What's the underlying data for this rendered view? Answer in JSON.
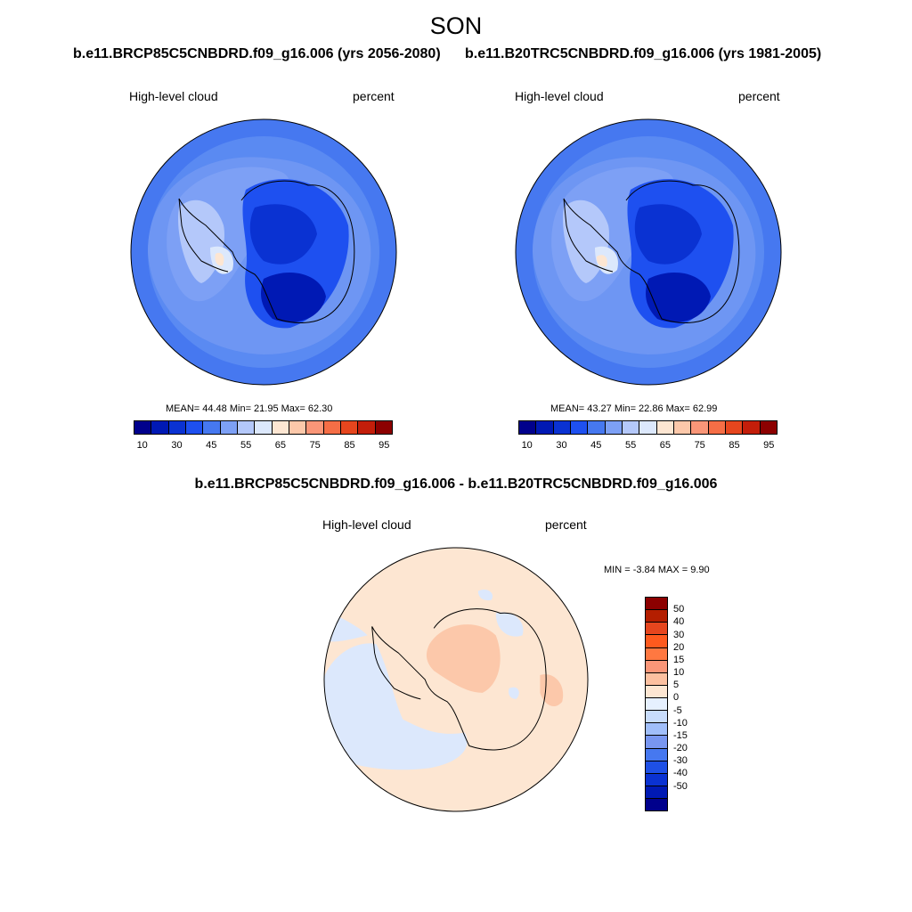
{
  "figure": {
    "title": "SON",
    "case_a": "b.e11.BRCP85C5CNBDRD.f09_g16.006 (yrs 2056-2080)",
    "case_b": "b.e11.B20TRC5CNBDRD.f09_g16.006 (yrs 1981-2005)",
    "diff_title": "b.e11.BRCP85C5CNBDRD.f09_g16.006 - b.e11.B20TRC5CNBDRD.f09_g16.006"
  },
  "panels": [
    {
      "variable": "High-level cloud",
      "units": "percent",
      "stats": "MEAN=  44.48  Min=  21.95  Max=  62.30"
    },
    {
      "variable": "High-level cloud",
      "units": "percent",
      "stats": "MEAN=  43.27  Min=  22.86  Max=  62.99"
    }
  ],
  "diff_panel": {
    "variable": "High-level cloud",
    "units": "percent",
    "stats": "MIN =  -3.84 MAX =   9.90"
  },
  "colorbar_main": {
    "colors": [
      "#00008c",
      "#0019b4",
      "#0a32d2",
      "#1e50f0",
      "#4678f0",
      "#7da0f5",
      "#b4c8fa",
      "#dce8fc",
      "#fde6d2",
      "#fcc8aa",
      "#fa9678",
      "#f56e46",
      "#e6461e",
      "#c31e0a",
      "#8c0000"
    ],
    "tick_labels": [
      "10",
      "30",
      "45",
      "55",
      "65",
      "75",
      "85",
      "95"
    ]
  },
  "colorbar_diff": {
    "colors": [
      "#8c0000",
      "#b41e00",
      "#e6461e",
      "#ff5a1e",
      "#ff7841",
      "#fa9678",
      "#fcc0a0",
      "#fde6d2",
      "#e6f0ff",
      "#c8dcfc",
      "#a0befa",
      "#7896f0",
      "#4678f0",
      "#1e50e6",
      "#0a32d2",
      "#0019b4",
      "#00008c"
    ],
    "tick_labels": [
      "50",
      "40",
      "30",
      "20",
      "15",
      "10",
      "5",
      "0",
      "-5",
      "-10",
      "-15",
      "-20",
      "-30",
      "-40",
      "-50"
    ]
  }
}
